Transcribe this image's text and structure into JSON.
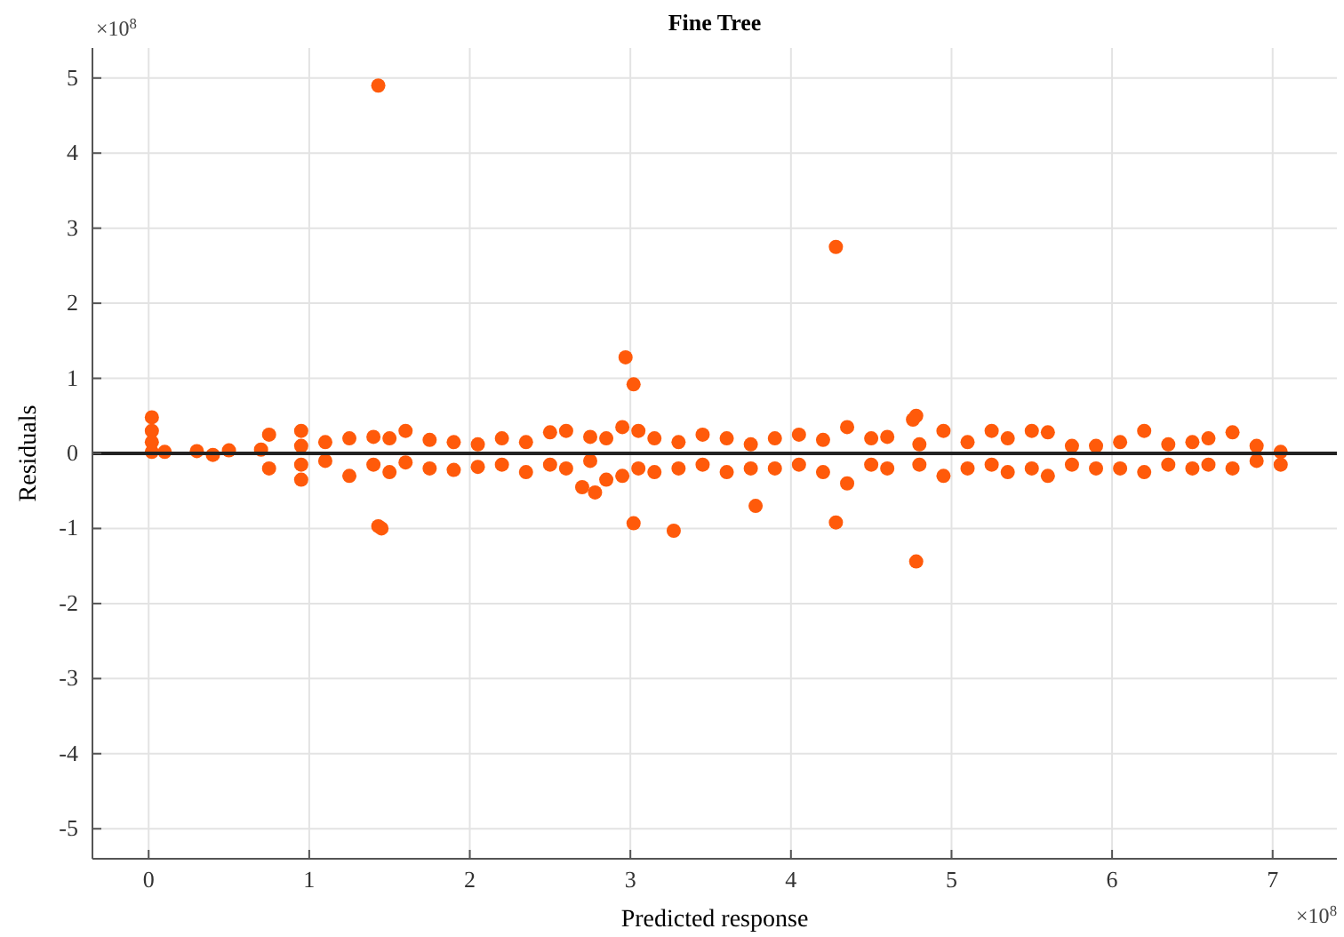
{
  "chart_data": {
    "type": "scatter",
    "title": "Fine Tree",
    "xlabel": "Predicted response",
    "ylabel": "Residuals",
    "annotations": [
      "×10$^{8}$",
      "×10$^{8}$"
    ],
    "xlim": [
      -0.35,
      7.4
    ],
    "xticks": [
      0,
      1,
      2,
      3,
      4,
      5,
      6,
      7
    ],
    "ylim": [
      -5.4,
      5.4
    ],
    "yticks": [
      -5,
      -4,
      -3,
      -2,
      -1,
      0,
      1,
      2,
      3,
      4,
      5
    ],
    "grid": true,
    "marker": "circle",
    "ref_lines": [
      {
        "axis": "y",
        "value": 0,
        "color": "#222222"
      }
    ],
    "series": [
      {
        "color": "#ff5a0a",
        "x": [
          1.43,
          4.28,
          2.97,
          3.02,
          1.43,
          1.45,
          3.02,
          3.27,
          3.78,
          4.28,
          4.78,
          4.78,
          4.76,
          0.02,
          0.02,
          0.02,
          0.02,
          2.7,
          2.78,
          0.1,
          0.3,
          0.5,
          0.7,
          0.4,
          0.75,
          0.75,
          0.95,
          0.95,
          0.95,
          0.95,
          1.1,
          1.1,
          1.25,
          1.25,
          1.4,
          1.4,
          1.5,
          1.5,
          1.6,
          1.6,
          1.75,
          1.75,
          1.9,
          1.9,
          2.05,
          2.05,
          2.2,
          2.2,
          2.35,
          2.35,
          2.5,
          2.5,
          2.6,
          2.6,
          2.75,
          2.75,
          2.85,
          2.85,
          2.95,
          2.95,
          3.05,
          3.05,
          3.15,
          3.15,
          3.3,
          3.3,
          3.45,
          3.45,
          3.6,
          3.6,
          3.75,
          3.75,
          3.9,
          3.9,
          4.05,
          4.05,
          4.2,
          4.2,
          4.35,
          4.35,
          4.5,
          4.5,
          4.6,
          4.6,
          4.8,
          4.8,
          4.95,
          4.95,
          5.1,
          5.1,
          5.25,
          5.25,
          5.35,
          5.35,
          5.5,
          5.5,
          5.6,
          5.6,
          5.75,
          5.75,
          5.9,
          5.9,
          6.05,
          6.05,
          6.2,
          6.2,
          6.35,
          6.35,
          6.5,
          6.5,
          6.6,
          6.6,
          6.75,
          6.75,
          6.9,
          6.9,
          7.05,
          7.05
        ],
        "values": [
          4.9,
          2.75,
          1.28,
          0.92,
          -0.97,
          -1.0,
          -0.93,
          -1.03,
          -0.7,
          -0.92,
          -1.44,
          0.5,
          0.45,
          0.48,
          0.3,
          0.15,
          0.02,
          -0.45,
          -0.52,
          0.02,
          0.03,
          0.04,
          0.05,
          -0.02,
          0.25,
          -0.2,
          0.3,
          -0.35,
          0.1,
          -0.15,
          0.15,
          -0.1,
          0.2,
          -0.3,
          0.22,
          -0.15,
          0.2,
          -0.25,
          0.3,
          -0.12,
          0.18,
          -0.2,
          0.15,
          -0.22,
          0.12,
          -0.18,
          0.2,
          -0.15,
          0.15,
          -0.25,
          0.28,
          -0.15,
          0.3,
          -0.2,
          0.22,
          -0.1,
          0.2,
          -0.35,
          0.35,
          -0.3,
          0.3,
          -0.2,
          0.2,
          -0.25,
          0.15,
          -0.2,
          0.25,
          -0.15,
          0.2,
          -0.25,
          0.12,
          -0.2,
          0.2,
          -0.2,
          0.25,
          -0.15,
          0.18,
          -0.25,
          0.35,
          -0.4,
          0.2,
          -0.15,
          0.22,
          -0.2,
          0.12,
          -0.15,
          0.3,
          -0.3,
          0.15,
          -0.2,
          0.3,
          -0.15,
          0.2,
          -0.25,
          0.3,
          -0.2,
          0.28,
          -0.3,
          0.1,
          -0.15,
          0.1,
          -0.2,
          0.15,
          -0.2,
          0.3,
          -0.25,
          0.12,
          -0.15,
          0.15,
          -0.2,
          0.2,
          -0.15,
          0.28,
          -0.2,
          0.1,
          -0.1,
          0.02,
          -0.15
        ]
      }
    ]
  }
}
